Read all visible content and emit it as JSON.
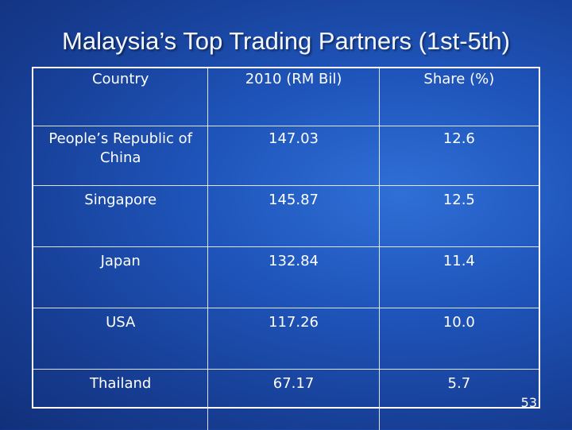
{
  "slide": {
    "title": "Malaysia’s Top Trading Partners (1st-5th)",
    "page_number": "53"
  },
  "table": {
    "headers": [
      "Country",
      "2010 (RM Bil)",
      "Share (%)"
    ],
    "rows": [
      [
        "People’s Republic of China",
        "147.03",
        "12.6"
      ],
      [
        "Singapore",
        "145.87",
        "12.5"
      ],
      [
        "Japan",
        "132.84",
        "11.4"
      ],
      [
        "USA",
        "117.26",
        "10.0"
      ],
      [
        "Thailand",
        "67.17",
        "5.7"
      ]
    ]
  },
  "colors": {
    "background": "#1f55bb",
    "text": "#ffffff",
    "grid": "#ffffff"
  }
}
